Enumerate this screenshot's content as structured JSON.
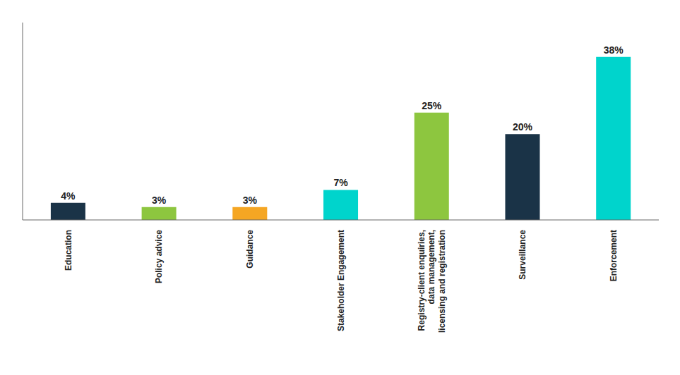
{
  "chart_data": {
    "type": "bar",
    "categories": [
      "Education",
      "Policy advice",
      "Guidance",
      "Stakeholder Engagement",
      "Registry-client enquiries,\ndata management,\nlicensing and registration",
      "Surveillance",
      "Enforcement"
    ],
    "values": [
      4,
      3,
      3,
      7,
      25,
      20,
      38
    ],
    "colors": [
      "#1a3347",
      "#8dc63f",
      "#f5a623",
      "#00d4cc",
      "#8dc63f",
      "#1a3347",
      "#00d4cc"
    ],
    "data_labels": true,
    "value_labels": [
      "4%",
      "3%",
      "3%",
      "7%",
      "25%",
      "20%",
      "38%"
    ],
    "ylim": [
      0,
      46
    ],
    "tick_labels": "x",
    "grid": false
  }
}
